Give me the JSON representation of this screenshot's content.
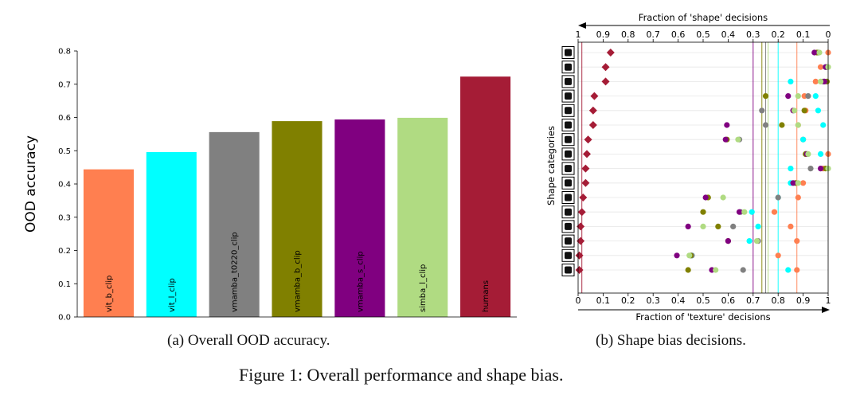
{
  "captions": {
    "panel_a": "(a) Overall OOD accuracy.",
    "panel_b": "(b) Shape bias decisions.",
    "figure": "Figure 1: Overall performance and shape bias."
  },
  "chart_data": [
    {
      "type": "bar",
      "title": "",
      "xlabel": "",
      "ylabel": "OOD accuracy",
      "ylim": [
        0.0,
        0.8
      ],
      "yticks": [
        "0.0",
        "0.1",
        "0.2",
        "0.3",
        "0.4",
        "0.5",
        "0.6",
        "0.7",
        "0.8"
      ],
      "categories": [
        "vit_b_clip",
        "vit_l_clip",
        "vmamba_t0220_clip",
        "vmamba_b_clip",
        "vmamba_s_clip",
        "simba_l_clip",
        "humans"
      ],
      "values": [
        0.444,
        0.496,
        0.556,
        0.589,
        0.594,
        0.599,
        0.723
      ],
      "colors": [
        "#ff7f50",
        "#00ffff",
        "#808080",
        "#808000",
        "#800080",
        "#b0db82",
        "#a51c36"
      ]
    },
    {
      "type": "scatter",
      "title": "",
      "xlabel": "Fraction of 'texture' decisions",
      "x2label": "Fraction of 'shape' decisions",
      "ylabel": "Shape categories",
      "xlim": [
        0,
        1
      ],
      "xticks": [
        "0",
        "0.1",
        "0.2",
        "0.3",
        "0.4",
        "0.5",
        "0.6",
        "0.7",
        "0.8",
        "0.9",
        "1"
      ],
      "x2ticks": [
        "1",
        "0.9",
        "0.8",
        "0.7",
        "0.6",
        "0.5",
        "0.4",
        "0.3",
        "0.2",
        "0.1",
        "0"
      ],
      "categories": [
        "knife",
        "bottle",
        "airplane",
        "bear",
        "dog",
        "car",
        "bird",
        "cat",
        "elephant",
        "truck",
        "bicycle",
        "chair",
        "boat",
        "keyboard",
        "clock",
        "oven"
      ],
      "category_icons": [
        "knife-icon",
        "bottle-icon",
        "airplane-icon",
        "bear-icon",
        "dog-icon",
        "car-icon",
        "bird-icon",
        "cat-icon",
        "elephant-icon",
        "truck-icon",
        "bicycle-icon",
        "chair-icon",
        "boat-icon",
        "keyboard-icon",
        "clock-icon",
        "oven-icon"
      ],
      "series": [
        {
          "name": "vit_b_clip",
          "color": "#ff7f50",
          "marker": "circle",
          "mean": 0.875,
          "values": [
            1.0,
            0.97,
            0.95,
            0.905,
            0.91,
            0.88,
            0.9,
            1.0,
            0.98,
            0.9,
            0.88,
            0.785,
            0.85,
            0.875,
            0.8,
            0.875
          ]
        },
        {
          "name": "vit_l_clip",
          "color": "#00ffff",
          "marker": "circle",
          "mean": 0.8,
          "values": [
            0.96,
            0.99,
            0.85,
            0.95,
            0.96,
            0.98,
            0.9,
            0.97,
            0.85,
            0.85,
            0.8,
            0.695,
            0.72,
            0.685,
            0.455,
            0.84
          ]
        },
        {
          "name": "vmamba_t0220_clip",
          "color": "#808080",
          "marker": "circle",
          "mean": 0.75,
          "values": [
            0.96,
            0.99,
            0.98,
            0.92,
            0.735,
            0.75,
            0.645,
            0.91,
            0.93,
            0.87,
            0.8,
            0.65,
            0.62,
            0.72,
            0.455,
            0.66
          ]
        },
        {
          "name": "vmamba_b_clip",
          "color": "#808000",
          "marker": "circle",
          "mean": 0.735,
          "values": [
            0.955,
            0.995,
            0.995,
            0.75,
            0.905,
            0.815,
            0.595,
            0.91,
            0.99,
            0.87,
            0.52,
            0.5,
            0.56,
            0.6,
            0.45,
            0.44
          ]
        },
        {
          "name": "vmamba_s_clip",
          "color": "#800080",
          "marker": "circle",
          "mean": 0.7,
          "values": [
            0.945,
            0.99,
            0.985,
            0.84,
            0.86,
            0.595,
            0.59,
            0.915,
            0.97,
            0.86,
            0.51,
            0.645,
            0.44,
            0.6,
            0.395,
            0.535
          ]
        },
        {
          "name": "simba_l_clip",
          "color": "#b0db82",
          "marker": "circle",
          "mean": 0.76,
          "values": [
            0.965,
            1.0,
            0.97,
            0.88,
            0.865,
            0.88,
            0.64,
            0.92,
            1.0,
            0.88,
            0.58,
            0.665,
            0.5,
            0.715,
            0.445,
            0.55
          ]
        },
        {
          "name": "humans",
          "color": "#a51c36",
          "marker": "diamond",
          "mean": 0.015,
          "values": [
            0.13,
            0.11,
            0.11,
            0.065,
            0.06,
            0.06,
            0.04,
            0.035,
            0.03,
            0.03,
            0.02,
            0.015,
            0.01,
            0.01,
            0.005,
            0.005
          ]
        }
      ]
    }
  ]
}
